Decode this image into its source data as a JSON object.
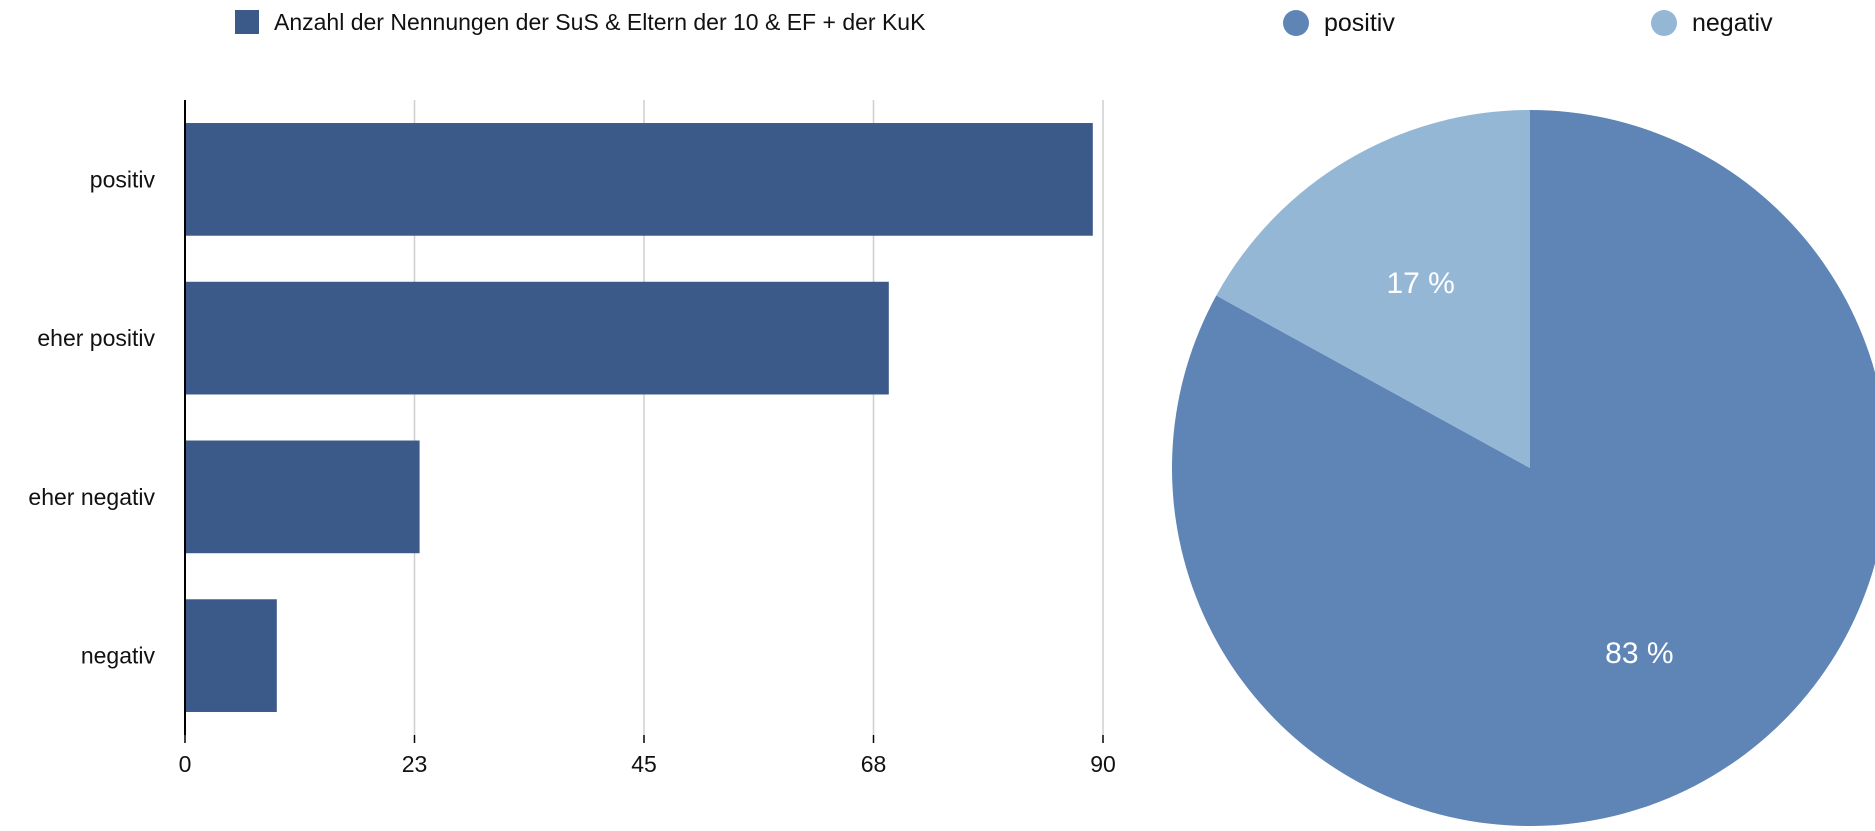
{
  "chart_data": [
    {
      "type": "bar",
      "orientation": "horizontal",
      "categories": [
        "positiv",
        "eher positiv",
        "eher negativ",
        "negativ"
      ],
      "series": [
        {
          "name": "Anzahl der Nennungen der SuS & Eltern der 10 & EF + der KuK",
          "values": [
            89,
            69,
            23,
            9
          ]
        }
      ],
      "xticks": [
        "0",
        "23",
        "45",
        "68",
        "90"
      ],
      "xlim": [
        0,
        90
      ],
      "grid": true,
      "legend_position": "top",
      "color": "#3b5a8a"
    },
    {
      "type": "pie",
      "labels": [
        "positiv",
        "negativ"
      ],
      "values": [
        83,
        17
      ],
      "value_labels": [
        "83 %",
        "17 %"
      ],
      "colors": [
        "#5f85b6",
        "#95b7d6"
      ],
      "legend_position": "top"
    }
  ]
}
